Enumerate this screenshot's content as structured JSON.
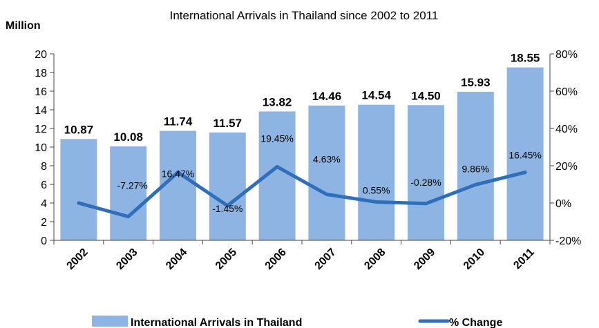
{
  "chart_data": {
    "type": "bar",
    "title": "International Arrivals in Thailand since 2002 to 2011",
    "left_axis_unit": "Million",
    "categories": [
      "2002",
      "2003",
      "2004",
      "2005",
      "2006",
      "2007",
      "2008",
      "2009",
      "2010",
      "2011"
    ],
    "series": [
      {
        "name": "International Arrivals in Thailand",
        "type": "bar",
        "axis": "left",
        "color": "#8db4e2",
        "values": [
          10.87,
          10.08,
          11.74,
          11.57,
          13.82,
          14.46,
          14.54,
          14.5,
          15.93,
          18.55
        ],
        "labels": [
          "10.87",
          "10.08",
          "11.74",
          "11.57",
          "13.82",
          "14.46",
          "14.54",
          "14.50",
          "15.93",
          "18.55"
        ]
      },
      {
        "name": "% Change",
        "type": "line",
        "axis": "right",
        "color": "#2f6eba",
        "values": [
          0,
          -7.27,
          16.47,
          -1.45,
          19.45,
          4.63,
          0.55,
          -0.28,
          9.86,
          16.45
        ],
        "labels": [
          "",
          "-7.27%",
          "16.47%",
          "-1.45%",
          "19.45%",
          "4.63%",
          "0.55%",
          "-0.28%",
          "9.86%",
          "16.45%"
        ]
      }
    ],
    "ylim_left": [
      0,
      20
    ],
    "left_ticks": [
      "0",
      "2",
      "4",
      "6",
      "8",
      "10",
      "12",
      "14",
      "16",
      "18",
      "20"
    ],
    "ylim_right": [
      -20,
      80
    ],
    "right_ticks": [
      "-20%",
      "0%",
      "20%",
      "40%",
      "60%",
      "80%"
    ],
    "grid": false,
    "legend_position": "bottom"
  }
}
